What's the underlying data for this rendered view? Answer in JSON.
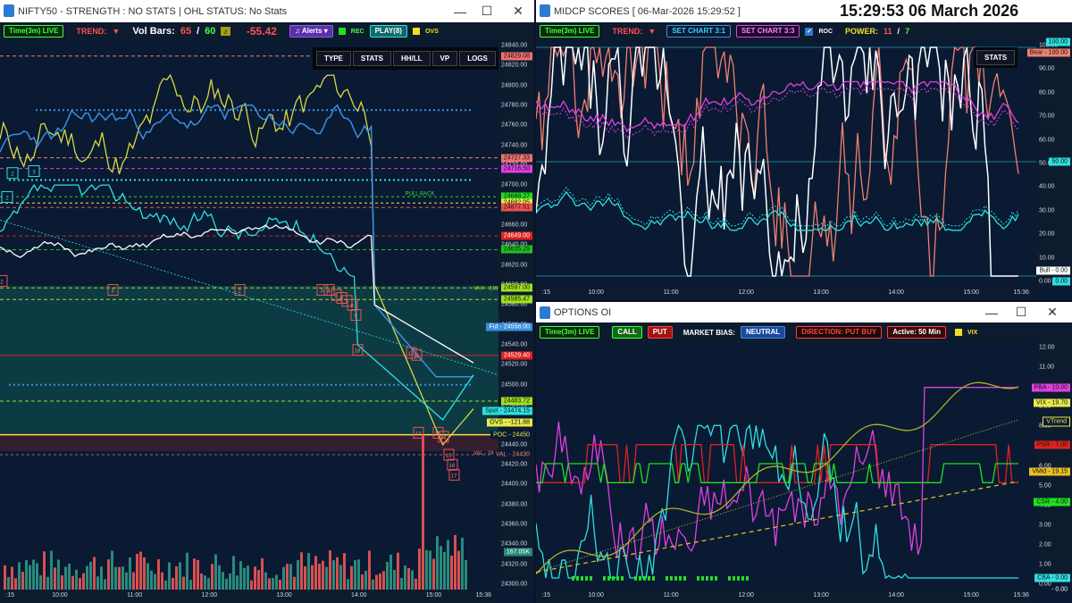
{
  "clock": "15:29:53 06 March 2026",
  "w1": {
    "title": "NIFTY50 - STRENGTH : NO STATS | OHL STATUS: No Stats",
    "timeframe": "Time(3m) LIVE",
    "trend_label": "TREND:",
    "trend_arrow": "▼",
    "volbars_label": "Vol Bars:",
    "volbars_a": "65",
    "volbars_sep": "/",
    "volbars_b": "60",
    "change": "-55.42",
    "alerts": "Alerts",
    "rec": "REC",
    "play": "PLAY(8)",
    "ovs": "OVS",
    "buttons": [
      "TYPE",
      "STATS",
      "HH/LL",
      "VP",
      "LOGS"
    ],
    "yticks": [
      "24840.00",
      "24820.00",
      "24800.00",
      "24780.00",
      "24760.00",
      "24740.00",
      "24720.00",
      "24700.00",
      "24680.00",
      "24660.00",
      "24640.00",
      "24620.00",
      "24600.00",
      "24580.00",
      "24560.00",
      "24540.00",
      "24520.00",
      "24500.00",
      "24480.00",
      "24460.00",
      "24440.00",
      "24420.00",
      "24400.00",
      "24380.00",
      "24360.00",
      "24340.00",
      "24320.00",
      "24300.00"
    ],
    "xticks": [
      ":15",
      "10:00",
      "11:00",
      "12:00",
      "13:00",
      "14:00",
      "15:00",
      "15:36"
    ],
    "levels": [
      "24829.08",
      "24727.33",
      "24716.50",
      "24688.27",
      "24682.05",
      "24677.51",
      "24649.00",
      "24635.29",
      "24597.00",
      "24585.47",
      "Fut - 24558.00",
      "24529.40",
      "24483.72",
      "Spot - 24474.15",
      "OVS - -121.88",
      "POC - 24450",
      "VAL - 24430",
      "167.05K"
    ],
    "markers": [
      "2",
      "3",
      "2",
      "3",
      "4",
      "5",
      "6",
      "7",
      "8",
      "9",
      "10",
      "11",
      "12",
      "13",
      "14",
      "15",
      "16",
      "17",
      "18"
    ],
    "annotations": [
      "PULL BACK",
      "VAH - 24595",
      "VAL - 24430"
    ]
  },
  "w2": {
    "title": "MIDCP SCORES [ 06-Mar-2026 15:29:52 ]",
    "timeframe": "Time(3m) LIVE",
    "trend_label": "TREND:",
    "trend_arrow": "▼",
    "set31": "SET CHART 3:1",
    "set33": "SET CHART 3:3",
    "roc": "ROC",
    "power_label": "POWER:",
    "power_a": "11",
    "power_sep": "/",
    "power_b": "7",
    "stats": "STATS",
    "yticks": [
      "100.00",
      "90.00",
      "80.00",
      "70.00",
      "60.00",
      "50.00",
      "40.00",
      "30.00",
      "20.00",
      "10.00",
      "0.00"
    ],
    "xticks": [
      ":15",
      "10:00",
      "11:00",
      "12:00",
      "13:00",
      "14:00",
      "15:00",
      "15:36"
    ],
    "labels": [
      "100.00",
      "Bear - 100.00",
      "50.00",
      "Bull - 0.00",
      "0.00"
    ]
  },
  "w3": {
    "title": "OPTIONS OI",
    "timeframe": "Time(3m) LIVE",
    "call": "CALL",
    "put": "PUT",
    "bias_label": "MARKET BIAS:",
    "bias": "NEUTRAL",
    "direction": "DIRECTION: PUT BUY",
    "active": "Active: 50 Min",
    "vix": "VIX",
    "yticks": [
      "12.00",
      "11.00",
      "10.00",
      "9.00",
      "8.00",
      "7.00",
      "6.00",
      "5.00",
      "4.00",
      "3.00",
      "2.00",
      "1.00",
      "0.00"
    ],
    "xticks": [
      ":15",
      "10:00",
      "11:00",
      "12:00",
      "13:00",
      "14:00",
      "15:00",
      "15:36"
    ],
    "labels": [
      "PBA - 10.00",
      "VIX - 19.70",
      "VTrend",
      "PSR - 7.00",
      "VMid - 19.15",
      "CSR - 4.00",
      "CBA - 0.00",
      "- 0.00"
    ]
  },
  "colors": {
    "yellow": "#e8e84a",
    "blue": "#3a8fe0",
    "cyan": "#2ee0e0",
    "white": "#ffffff",
    "salmon": "#f08070",
    "magenta": "#e040e0",
    "red": "#e02020",
    "green": "#20e020"
  }
}
